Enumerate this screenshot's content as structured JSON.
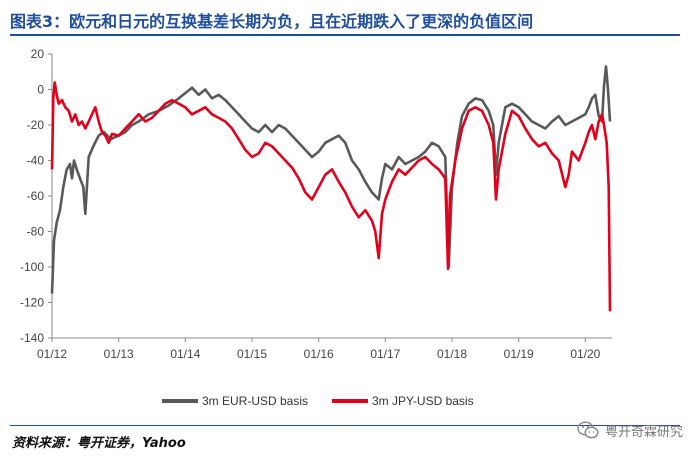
{
  "figure": {
    "title": "图表3：欧元和日元的互换基差长期为负，且在近期跌入了更深的负值区间",
    "source": "资料来源：粤开证券，Yahoo",
    "watermark": "粤开奇霖研究",
    "watermark_icon": "wechat-icon",
    "accent_color": "#1f4e9a"
  },
  "chart_data": {
    "type": "line",
    "title": "",
    "xlabel": "",
    "ylabel": "",
    "ylim": [
      -140,
      20
    ],
    "xlim": [
      2012.0,
      2020.4
    ],
    "grid": false,
    "legend_position": "bottom-center",
    "x_ticks": [
      {
        "value": 2012,
        "label": "01/12"
      },
      {
        "value": 2013,
        "label": "01/13"
      },
      {
        "value": 2014,
        "label": "01/14"
      },
      {
        "value": 2015,
        "label": "01/15"
      },
      {
        "value": 2016,
        "label": "01/16"
      },
      {
        "value": 2017,
        "label": "01/17"
      },
      {
        "value": 2018,
        "label": "01/18"
      },
      {
        "value": 2019,
        "label": "01/19"
      },
      {
        "value": 2020,
        "label": "01/20"
      }
    ],
    "y_ticks": [
      20,
      0,
      -20,
      -40,
      -60,
      -80,
      -100,
      -120,
      -140
    ],
    "series": [
      {
        "name": "3m EUR-USD basis",
        "color": "#595959",
        "points": [
          [
            2012.0,
            -115
          ],
          [
            2012.03,
            -85
          ],
          [
            2012.07,
            -75
          ],
          [
            2012.12,
            -68
          ],
          [
            2012.17,
            -55
          ],
          [
            2012.22,
            -45
          ],
          [
            2012.27,
            -42
          ],
          [
            2012.3,
            -50
          ],
          [
            2012.33,
            -40
          ],
          [
            2012.38,
            -46
          ],
          [
            2012.42,
            -50
          ],
          [
            2012.47,
            -55
          ],
          [
            2012.5,
            -70
          ],
          [
            2012.55,
            -38
          ],
          [
            2012.62,
            -32
          ],
          [
            2012.7,
            -26
          ],
          [
            2012.78,
            -24
          ],
          [
            2012.88,
            -28
          ],
          [
            2013.0,
            -26
          ],
          [
            2013.1,
            -24
          ],
          [
            2013.2,
            -20
          ],
          [
            2013.3,
            -18
          ],
          [
            2013.45,
            -14
          ],
          [
            2013.6,
            -12
          ],
          [
            2013.75,
            -9
          ],
          [
            2013.9,
            -5
          ],
          [
            2014.0,
            -2
          ],
          [
            2014.1,
            1
          ],
          [
            2014.2,
            -3
          ],
          [
            2014.3,
            0
          ],
          [
            2014.4,
            -5
          ],
          [
            2014.5,
            -3
          ],
          [
            2014.6,
            -6
          ],
          [
            2014.7,
            -10
          ],
          [
            2014.8,
            -14
          ],
          [
            2014.9,
            -18
          ],
          [
            2015.0,
            -22
          ],
          [
            2015.1,
            -24
          ],
          [
            2015.2,
            -20
          ],
          [
            2015.3,
            -24
          ],
          [
            2015.4,
            -20
          ],
          [
            2015.5,
            -22
          ],
          [
            2015.6,
            -26
          ],
          [
            2015.7,
            -30
          ],
          [
            2015.8,
            -34
          ],
          [
            2015.9,
            -38
          ],
          [
            2016.0,
            -35
          ],
          [
            2016.1,
            -30
          ],
          [
            2016.2,
            -28
          ],
          [
            2016.3,
            -26
          ],
          [
            2016.4,
            -30
          ],
          [
            2016.5,
            -40
          ],
          [
            2016.6,
            -45
          ],
          [
            2016.7,
            -52
          ],
          [
            2016.8,
            -58
          ],
          [
            2016.9,
            -62
          ],
          [
            2016.95,
            -50
          ],
          [
            2017.0,
            -42
          ],
          [
            2017.1,
            -45
          ],
          [
            2017.2,
            -38
          ],
          [
            2017.3,
            -42
          ],
          [
            2017.4,
            -40
          ],
          [
            2017.5,
            -38
          ],
          [
            2017.6,
            -35
          ],
          [
            2017.7,
            -30
          ],
          [
            2017.8,
            -32
          ],
          [
            2017.9,
            -38
          ],
          [
            2017.95,
            -100
          ],
          [
            2018.0,
            -55
          ],
          [
            2018.08,
            -30
          ],
          [
            2018.15,
            -15
          ],
          [
            2018.25,
            -8
          ],
          [
            2018.35,
            -5
          ],
          [
            2018.45,
            -6
          ],
          [
            2018.55,
            -12
          ],
          [
            2018.62,
            -20
          ],
          [
            2018.66,
            -48
          ],
          [
            2018.7,
            -30
          ],
          [
            2018.8,
            -10
          ],
          [
            2018.9,
            -8
          ],
          [
            2019.0,
            -10
          ],
          [
            2019.1,
            -14
          ],
          [
            2019.2,
            -18
          ],
          [
            2019.3,
            -20
          ],
          [
            2019.4,
            -22
          ],
          [
            2019.5,
            -18
          ],
          [
            2019.6,
            -15
          ],
          [
            2019.7,
            -20
          ],
          [
            2019.8,
            -18
          ],
          [
            2019.9,
            -16
          ],
          [
            2020.0,
            -14
          ],
          [
            2020.05,
            -10
          ],
          [
            2020.1,
            -5
          ],
          [
            2020.15,
            -3
          ],
          [
            2020.2,
            -15
          ],
          [
            2020.25,
            -18
          ],
          [
            2020.28,
            2
          ],
          [
            2020.31,
            13
          ],
          [
            2020.34,
            0
          ],
          [
            2020.37,
            -18
          ]
        ]
      },
      {
        "name": "3m JPY-USD basis",
        "color": "#e3001b",
        "points": [
          [
            2012.0,
            -45
          ],
          [
            2012.02,
            -5
          ],
          [
            2012.04,
            4
          ],
          [
            2012.07,
            -3
          ],
          [
            2012.1,
            -8
          ],
          [
            2012.15,
            -6
          ],
          [
            2012.2,
            -10
          ],
          [
            2012.25,
            -12
          ],
          [
            2012.3,
            -18
          ],
          [
            2012.35,
            -14
          ],
          [
            2012.4,
            -20
          ],
          [
            2012.45,
            -18
          ],
          [
            2012.5,
            -22
          ],
          [
            2012.55,
            -18
          ],
          [
            2012.6,
            -14
          ],
          [
            2012.65,
            -10
          ],
          [
            2012.7,
            -18
          ],
          [
            2012.75,
            -24
          ],
          [
            2012.8,
            -26
          ],
          [
            2012.85,
            -30
          ],
          [
            2012.9,
            -25
          ],
          [
            2013.0,
            -26
          ],
          [
            2013.1,
            -22
          ],
          [
            2013.2,
            -18
          ],
          [
            2013.3,
            -14
          ],
          [
            2013.4,
            -18
          ],
          [
            2013.5,
            -16
          ],
          [
            2013.6,
            -12
          ],
          [
            2013.7,
            -8
          ],
          [
            2013.8,
            -6
          ],
          [
            2013.9,
            -8
          ],
          [
            2014.0,
            -10
          ],
          [
            2014.1,
            -14
          ],
          [
            2014.2,
            -12
          ],
          [
            2014.3,
            -10
          ],
          [
            2014.4,
            -14
          ],
          [
            2014.5,
            -16
          ],
          [
            2014.6,
            -18
          ],
          [
            2014.7,
            -22
          ],
          [
            2014.8,
            -28
          ],
          [
            2014.9,
            -34
          ],
          [
            2015.0,
            -38
          ],
          [
            2015.1,
            -36
          ],
          [
            2015.2,
            -30
          ],
          [
            2015.3,
            -32
          ],
          [
            2015.4,
            -36
          ],
          [
            2015.5,
            -40
          ],
          [
            2015.6,
            -44
          ],
          [
            2015.7,
            -50
          ],
          [
            2015.8,
            -58
          ],
          [
            2015.9,
            -62
          ],
          [
            2016.0,
            -55
          ],
          [
            2016.1,
            -48
          ],
          [
            2016.2,
            -45
          ],
          [
            2016.3,
            -52
          ],
          [
            2016.4,
            -58
          ],
          [
            2016.5,
            -66
          ],
          [
            2016.6,
            -72
          ],
          [
            2016.7,
            -68
          ],
          [
            2016.8,
            -74
          ],
          [
            2016.85,
            -80
          ],
          [
            2016.9,
            -95
          ],
          [
            2016.95,
            -70
          ],
          [
            2017.0,
            -62
          ],
          [
            2017.1,
            -52
          ],
          [
            2017.2,
            -45
          ],
          [
            2017.3,
            -48
          ],
          [
            2017.4,
            -44
          ],
          [
            2017.5,
            -40
          ],
          [
            2017.6,
            -38
          ],
          [
            2017.7,
            -42
          ],
          [
            2017.8,
            -45
          ],
          [
            2017.9,
            -50
          ],
          [
            2017.94,
            -101
          ],
          [
            2017.97,
            -60
          ],
          [
            2018.05,
            -40
          ],
          [
            2018.15,
            -22
          ],
          [
            2018.25,
            -12
          ],
          [
            2018.35,
            -10
          ],
          [
            2018.45,
            -12
          ],
          [
            2018.55,
            -20
          ],
          [
            2018.62,
            -30
          ],
          [
            2018.66,
            -62
          ],
          [
            2018.7,
            -45
          ],
          [
            2018.8,
            -25
          ],
          [
            2018.9,
            -12
          ],
          [
            2019.0,
            -15
          ],
          [
            2019.1,
            -22
          ],
          [
            2019.2,
            -28
          ],
          [
            2019.3,
            -32
          ],
          [
            2019.4,
            -30
          ],
          [
            2019.5,
            -36
          ],
          [
            2019.6,
            -40
          ],
          [
            2019.7,
            -55
          ],
          [
            2019.75,
            -48
          ],
          [
            2019.8,
            -35
          ],
          [
            2019.9,
            -40
          ],
          [
            2020.0,
            -30
          ],
          [
            2020.05,
            -24
          ],
          [
            2020.1,
            -20
          ],
          [
            2020.15,
            -28
          ],
          [
            2020.2,
            -18
          ],
          [
            2020.25,
            -14
          ],
          [
            2020.28,
            -20
          ],
          [
            2020.32,
            -30
          ],
          [
            2020.35,
            -55
          ],
          [
            2020.37,
            -125
          ]
        ]
      }
    ]
  }
}
